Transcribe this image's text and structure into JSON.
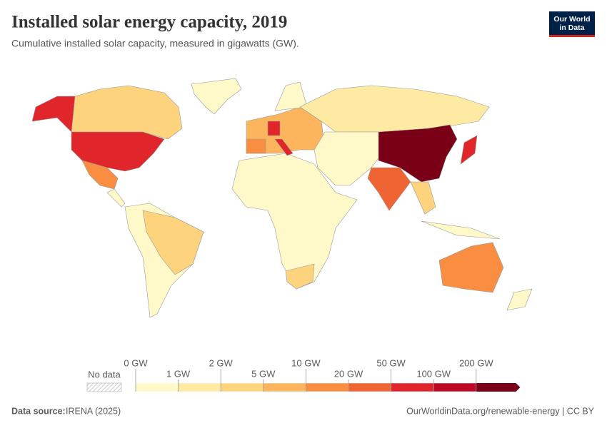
{
  "header": {
    "title": "Installed solar energy capacity, 2019",
    "subtitle": "Cumulative installed solar capacity, measured in gigawatts (GW).",
    "logo": [
      "Our World",
      "in Data"
    ]
  },
  "legend": {
    "no_data": "No data",
    "ticks": [
      "0 GW",
      "1 GW",
      "2 GW",
      "5 GW",
      "10 GW",
      "20 GW",
      "50 GW",
      "100 GW",
      "200 GW"
    ],
    "colors": [
      "#fff8c8",
      "#feeaa3",
      "#fdd47d",
      "#fcb55c",
      "#f98e43",
      "#f06434",
      "#e0262a",
      "#bf0a26",
      "#7a0017"
    ]
  },
  "footer": {
    "source_label": "Data source:",
    "source": "IRENA (2025)",
    "url": "OurWorldinData.org/renewable-energy | CC BY"
  }
}
